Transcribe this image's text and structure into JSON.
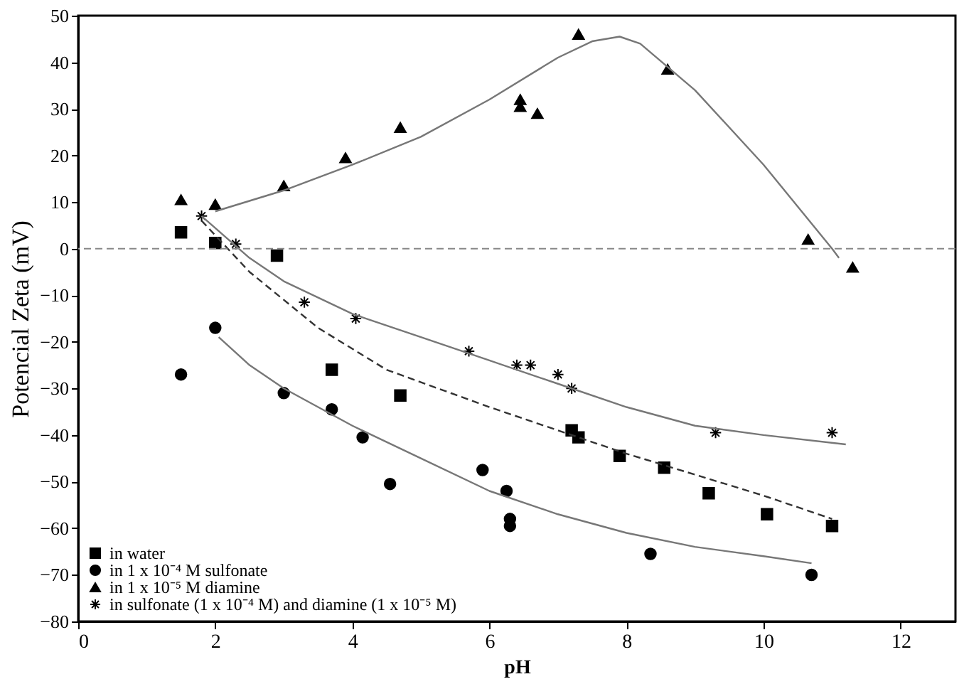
{
  "chart_data": {
    "type": "scatter",
    "xlabel": "pH",
    "ylabel": "Potencial Zeta (mV)",
    "xlim": [
      0,
      12.8
    ],
    "xticks": [
      0,
      2,
      4,
      6,
      8,
      10,
      12
    ],
    "ylim": [
      -80,
      50
    ],
    "yticks": [
      -80,
      -70,
      -60,
      -50,
      -40,
      -30,
      -20,
      -10,
      0,
      10,
      20,
      30,
      40,
      50
    ],
    "grid": false,
    "legend": "bottom left",
    "ref_lines": [
      {
        "axis": "y",
        "value": 0,
        "color": "#888888",
        "line_style": "dashed"
      }
    ],
    "series": [
      {
        "name": "in water",
        "type": "scatter",
        "marker": "square",
        "color": "#000000",
        "x": [
          1.5,
          2.0,
          2.9,
          3.7,
          4.7,
          7.2,
          7.3,
          7.9,
          8.55,
          9.2,
          10.05,
          11.0
        ],
        "values": [
          3.5,
          1.2,
          -1.5,
          -26,
          -31.5,
          -39,
          -40.5,
          -44.5,
          -47,
          -52.5,
          -57,
          -59.5
        ]
      },
      {
        "name": "in 1 x 10⁻⁴ M sulfonate",
        "type": "scatter",
        "marker": "circle",
        "color": "#000000",
        "x": [
          1.5,
          2.0,
          3.0,
          3.7,
          4.15,
          4.55,
          5.9,
          6.25,
          6.3,
          6.3,
          8.35,
          10.7
        ],
        "values": [
          -27,
          -17,
          -31,
          -34.5,
          -40.5,
          -50.5,
          -47.5,
          -52,
          -58,
          -59.5,
          -65.5,
          -70
        ]
      },
      {
        "name": "in 1 x 10⁻⁵ M diamine",
        "type": "scatter",
        "marker": "triangle",
        "color": "#000000",
        "x": [
          1.5,
          2.0,
          3.0,
          3.9,
          4.7,
          6.45,
          6.45,
          6.7,
          7.3,
          8.6,
          10.65,
          11.3
        ],
        "values": [
          10.5,
          9.5,
          13.5,
          19.5,
          26,
          32,
          30.5,
          29,
          46,
          38.5,
          2,
          -4
        ]
      },
      {
        "name": "in sulfonate (1 x 10⁻⁴ M) and diamine (1 x 10⁻⁵ M)",
        "type": "scatter",
        "marker": "cross",
        "color": "#000000",
        "x": [
          1.8,
          2.3,
          3.3,
          4.05,
          5.7,
          6.4,
          6.6,
          7.0,
          7.2,
          9.3,
          11.0
        ],
        "values": [
          7,
          1,
          -11.5,
          -15,
          -22,
          -25,
          -25,
          -27,
          -30,
          -39.5,
          -39.5
        ]
      },
      {
        "type": "line",
        "line_style": "dashed",
        "color": "#333333",
        "x": [
          1.8,
          2.5,
          3.5,
          4.5,
          6,
          8,
          10,
          11
        ],
        "values": [
          6,
          -5,
          -17,
          -26,
          -34,
          -44,
          -53,
          -58
        ]
      },
      {
        "type": "line",
        "line_style": "solid",
        "color": "#777777",
        "x": [
          2.05,
          2.5,
          3,
          4,
          5,
          6,
          7,
          8,
          9,
          10,
          10.7
        ],
        "values": [
          -19,
          -25,
          -30,
          -38,
          -45,
          -52,
          -57,
          -61,
          -64,
          -66,
          -67.5
        ]
      },
      {
        "type": "line",
        "line_style": "solid",
        "color": "#777777",
        "x": [
          2,
          3,
          4,
          5,
          6,
          7,
          7.5,
          7.9,
          8.2,
          9,
          10,
          10.5,
          11,
          11.1
        ],
        "values": [
          8,
          12.5,
          18,
          24,
          32,
          41,
          44.5,
          45.5,
          44,
          34,
          18,
          9,
          0,
          -2
        ]
      },
      {
        "type": "line",
        "line_style": "solid",
        "color": "#777777",
        "x": [
          1.8,
          2.5,
          3,
          4,
          5,
          6,
          7,
          8,
          9,
          10,
          11.2
        ],
        "values": [
          7,
          -2,
          -7,
          -14,
          -19,
          -24,
          -29,
          -34,
          -38,
          -40,
          -42
        ]
      }
    ]
  }
}
